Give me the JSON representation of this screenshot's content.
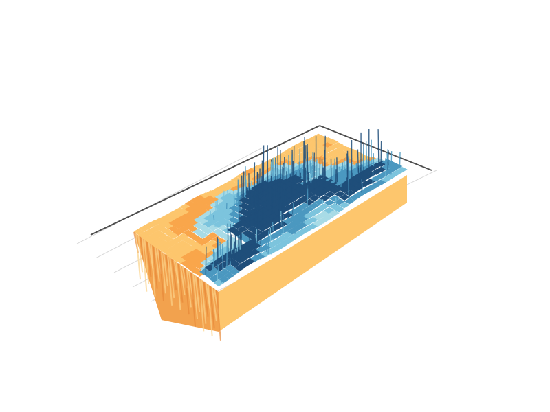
{
  "chart_data": {
    "type": "surface",
    "title": "",
    "xlabel": "",
    "ylabel": "",
    "zlabel": "",
    "grid": true,
    "legend": "none",
    "colorscale": [
      "#fdc66d",
      "#f9a64b",
      "#a8dbe6",
      "#7cc4dd",
      "#4b98c0",
      "#1f4e7a"
    ],
    "floor_color": "#fdc66d",
    "side_dark_color": "#f2a24e",
    "axis_color": "#4d4d4d",
    "grid_color": "#d9d9d9",
    "peaks": [
      {
        "u": 0.52,
        "v": 0.47,
        "height": 1.0
      },
      {
        "u": 0.82,
        "v": 0.78,
        "height": 0.85
      },
      {
        "u": 0.12,
        "v": 0.86,
        "height": 0.55
      },
      {
        "u": 0.38,
        "v": 0.7,
        "height": 0.45
      },
      {
        "u": 0.7,
        "v": 0.35,
        "height": 0.4
      },
      {
        "u": 0.3,
        "v": 0.3,
        "height": 0.35
      }
    ]
  }
}
